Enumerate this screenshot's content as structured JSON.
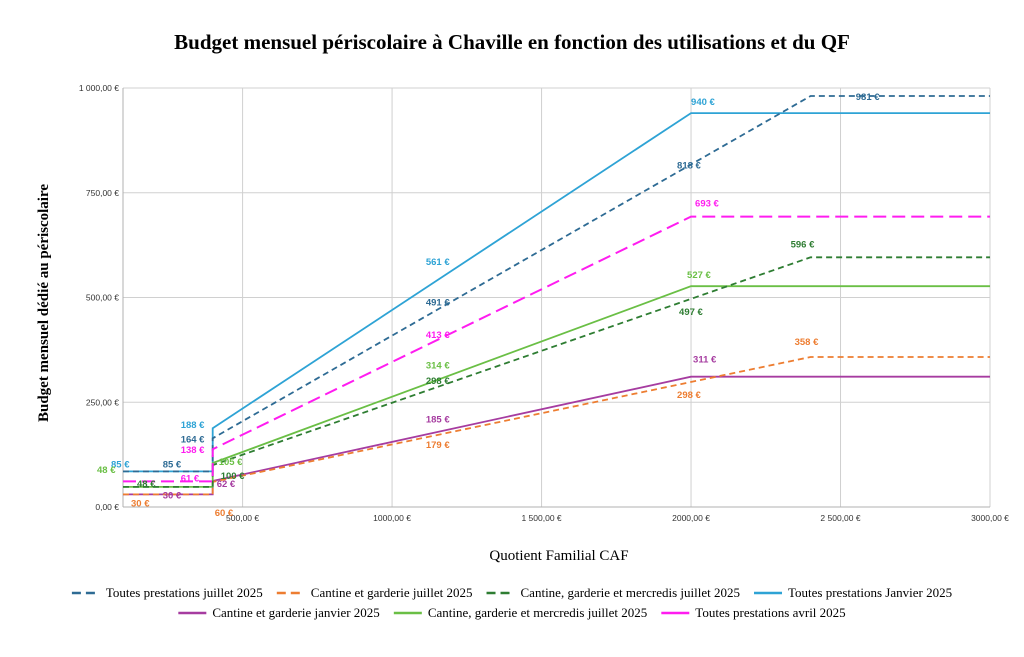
{
  "chart_data": {
    "type": "line",
    "title": "Budget mensuel périscolaire à Chaville en fonction des utilisations et du QF",
    "xlabel": "Quotient Familial CAF",
    "ylabel": "Budget mensuel dédié au périscolaire",
    "xlim": [
      100,
      3000
    ],
    "ylim": [
      0,
      1000
    ],
    "x_ticks": [
      500,
      1000,
      1500,
      2000,
      2500,
      3000
    ],
    "x_tick_labels": [
      "500,00 €",
      "1000,00 €",
      "1 500,00 €",
      "2000,00 €",
      "2 500,00 €",
      "3000,00 €"
    ],
    "y_ticks": [
      0,
      250,
      500,
      750,
      1000
    ],
    "y_tick_labels": [
      "0,00 €",
      "250,00 €",
      "500,00 €",
      "750,00 €",
      "1 000,00 €"
    ],
    "grid": true,
    "legend_position": "bottom",
    "series": [
      {
        "name": "Toutes prestations juillet 2025",
        "color": "#2e6b94",
        "dash": "dash",
        "points": [
          [
            100,
            85
          ],
          [
            400,
            85
          ],
          [
            400,
            164
          ],
          [
            2400,
            981
          ],
          [
            3000,
            981
          ]
        ],
        "labels": [
          {
            "text": "85 €",
            "x": 400,
            "y": 85,
            "dx": -50,
            "dy": -4
          },
          {
            "text": "164 €",
            "x": 400,
            "y": 164,
            "dx": -32,
            "dy": 4
          },
          {
            "text": "491 €",
            "x": 1200,
            "y": 491,
            "dx": -26,
            "dy": 4
          },
          {
            "text": "818 €",
            "x": 2000,
            "y": 818,
            "dx": -14,
            "dy": 4
          },
          {
            "text": "981 €",
            "x": 2250,
            "y": 981,
            "dx": 90,
            "dy": 4
          }
        ]
      },
      {
        "name": "Cantine et garderie juillet 2025",
        "color": "#ed7d31",
        "dash": "dash",
        "points": [
          [
            100,
            30
          ],
          [
            400,
            30
          ],
          [
            400,
            60
          ],
          [
            2400,
            358
          ],
          [
            3000,
            358
          ]
        ],
        "labels": [
          {
            "text": "30 €",
            "x": 100,
            "y": 30,
            "dx": 8,
            "dy": 12
          },
          {
            "text": "60 €",
            "x": 400,
            "y": 60,
            "dx": 2,
            "dy": 34
          },
          {
            "text": "179 €",
            "x": 1200,
            "y": 179,
            "dx": -26,
            "dy": 16
          },
          {
            "text": "298 €",
            "x": 2000,
            "y": 298,
            "dx": -14,
            "dy": 16
          },
          {
            "text": "358 €",
            "x": 2400,
            "y": 358,
            "dx": -16,
            "dy": -12
          }
        ]
      },
      {
        "name": "Cantine, garderie et mercredis juillet 2025",
        "color": "#2e7d32",
        "dash": "dash",
        "points": [
          [
            100,
            48
          ],
          [
            400,
            48
          ],
          [
            400,
            100
          ],
          [
            2400,
            596
          ],
          [
            3000,
            596
          ]
        ],
        "labels": [
          {
            "text": "48 €",
            "x": 100,
            "y": 48,
            "dx": 14,
            "dy": 0
          },
          {
            "text": "100 €",
            "x": 400,
            "y": 100,
            "dx": 8,
            "dy": 14
          },
          {
            "text": "298 €",
            "x": 1200,
            "y": 298,
            "dx": -26,
            "dy": 2
          },
          {
            "text": "497 €",
            "x": 2000,
            "y": 497,
            "dx": -12,
            "dy": 16
          },
          {
            "text": "596 €",
            "x": 2400,
            "y": 596,
            "dx": -20,
            "dy": -10
          }
        ]
      },
      {
        "name": "Toutes prestations Janvier 2025",
        "color": "#2ea3d5",
        "dash": "solid",
        "points": [
          [
            100,
            85
          ],
          [
            400,
            85
          ],
          [
            400,
            188
          ],
          [
            2000,
            940
          ],
          [
            3000,
            940
          ]
        ],
        "labels": [
          {
            "text": "85 €",
            "x": 100,
            "y": 85,
            "dx": -12,
            "dy": -4
          },
          {
            "text": "188 €",
            "x": 400,
            "y": 188,
            "dx": -32,
            "dy": 0
          },
          {
            "text": "561 €",
            "x": 1200,
            "y": 561,
            "dx": -26,
            "dy": -7
          },
          {
            "text": "940 €",
            "x": 2000,
            "y": 940,
            "dx": 0,
            "dy": -8
          }
        ]
      },
      {
        "name": "Cantine et garderie janvier 2025",
        "color": "#a63ca0",
        "dash": "solid",
        "points": [
          [
            100,
            30
          ],
          [
            400,
            30
          ],
          [
            400,
            62
          ],
          [
            2000,
            311
          ],
          [
            3000,
            311
          ]
        ],
        "labels": [
          {
            "text": "30 €",
            "x": 400,
            "y": 30,
            "dx": -50,
            "dy": 4
          },
          {
            "text": "62 €",
            "x": 400,
            "y": 62,
            "dx": 4,
            "dy": 6
          },
          {
            "text": "185 €",
            "x": 1200,
            "y": 185,
            "dx": -26,
            "dy": -7
          },
          {
            "text": "311 €",
            "x": 2000,
            "y": 311,
            "dx": 2,
            "dy": -14
          }
        ]
      },
      {
        "name": "Cantine, garderie et mercredis juillet 2025",
        "color": "#6abf45",
        "dash": "solid",
        "points": [
          [
            100,
            48
          ],
          [
            400,
            48
          ],
          [
            400,
            105
          ],
          [
            2000,
            527
          ],
          [
            3000,
            527
          ]
        ],
        "labels": [
          {
            "text": "48 €",
            "x": 100,
            "y": 48,
            "dx": -26,
            "dy": -14
          },
          {
            "text": "105 €",
            "x": 400,
            "y": 105,
            "dx": 6,
            "dy": 2
          },
          {
            "text": "314 €",
            "x": 1200,
            "y": 314,
            "dx": -26,
            "dy": -7
          },
          {
            "text": "527 €",
            "x": 2000,
            "y": 527,
            "dx": -4,
            "dy": -8
          }
        ]
      },
      {
        "name": "Toutes prestations avril 2025",
        "color": "#ff1cf0",
        "dash": "longdash",
        "points": [
          [
            100,
            61
          ],
          [
            400,
            61
          ],
          [
            400,
            138
          ],
          [
            2000,
            693
          ],
          [
            3000,
            693
          ]
        ],
        "labels": [
          {
            "text": "61 €",
            "x": 400,
            "y": 61,
            "dx": -32,
            "dy": 0
          },
          {
            "text": "138 €",
            "x": 400,
            "y": 138,
            "dx": -32,
            "dy": 4
          },
          {
            "text": "413 €",
            "x": 1200,
            "y": 413,
            "dx": -26,
            "dy": 4
          },
          {
            "text": "693 €",
            "x": 2000,
            "y": 693,
            "dx": 4,
            "dy": -10
          }
        ]
      }
    ]
  }
}
